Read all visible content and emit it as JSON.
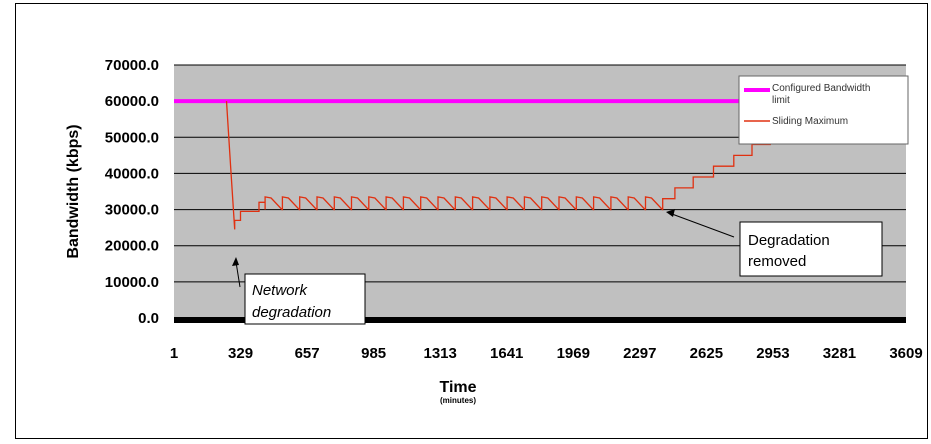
{
  "chart_data": {
    "type": "line",
    "title": "",
    "xlabel": "Time",
    "xlabel_sub": "(minutes)",
    "ylabel": "Bandwidth (kbps)",
    "ylim": [
      0,
      70000
    ],
    "xlim": [
      1,
      3609
    ],
    "y_ticks": [
      "0.0",
      "10000.0",
      "20000.0",
      "30000.0",
      "40000.0",
      "50000.0",
      "60000.0",
      "70000.0"
    ],
    "y_tick_values": [
      0,
      10000,
      20000,
      30000,
      40000,
      50000,
      60000,
      70000
    ],
    "x_ticks": [
      "1",
      "329",
      "657",
      "985",
      "1313",
      "1641",
      "1969",
      "2297",
      "2625",
      "2953",
      "3281",
      "3609"
    ],
    "x_tick_values": [
      1,
      329,
      657,
      985,
      1313,
      1641,
      1969,
      2297,
      2625,
      2953,
      3281,
      3609
    ],
    "grid": true,
    "plot_background": "#c0c0c0",
    "legend_position": "right",
    "series": [
      {
        "name": "Configured Bandwidth limit",
        "color": "#ff00ff",
        "x": [
          1,
          3609
        ],
        "y": [
          60000,
          60000
        ]
      },
      {
        "name": "Sliding Maximum",
        "color": "#e03010",
        "x": [
          260,
          280,
          300,
          300,
          329,
          329,
          420,
          420,
          450
        ],
        "y": [
          60000,
          42000,
          24500,
          27000,
          27000,
          29500,
          29500,
          32000,
          32000
        ]
      }
    ],
    "sawtooth": {
      "x_start": 450,
      "x_end": 2410,
      "teeth": 23,
      "low": 30000,
      "high": 33500
    },
    "staircase": {
      "x": [
        2410,
        2410,
        2470,
        2470,
        2560,
        2560,
        2660,
        2660,
        2760,
        2760,
        2850,
        2850,
        2940,
        2940,
        3030,
        3030,
        3120,
        3120,
        3210,
        3210,
        3300,
        3300,
        3370
      ],
      "y": [
        30000,
        33000,
        33000,
        36000,
        36000,
        39000,
        39000,
        42000,
        42000,
        45000,
        45000,
        48000,
        48000,
        51000,
        51000,
        54000,
        54000,
        57000,
        57000,
        57500,
        57500,
        58000,
        58000
      ]
    },
    "annotations": [
      {
        "text_lines": [
          "Network",
          "degradation"
        ],
        "italic": true
      },
      {
        "text_lines": [
          "Degradation",
          "removed"
        ],
        "italic": false
      }
    ]
  }
}
